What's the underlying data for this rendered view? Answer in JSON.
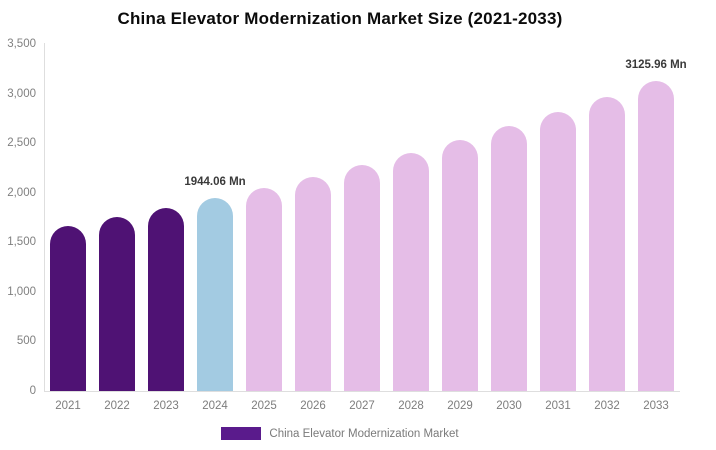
{
  "title": "China Elevator Modernization Market Size (2021-2033)",
  "legend": {
    "label": "China Elevator Modernization Market",
    "swatch_color": "#5A1B8C"
  },
  "colors": {
    "historical_bar": "#4F1274",
    "base_year_bar": "#A3CBE2",
    "forecast_bar": "#E5BDE7",
    "axis_line": "#dedede",
    "tick_text": "#808080",
    "data_label_text": "#3a3a3a"
  },
  "chart_data": {
    "type": "bar",
    "title": "China Elevator Modernization Market Size (2021-2033)",
    "unit": "Mn",
    "categories": [
      "2021",
      "2022",
      "2023",
      "2024",
      "2025",
      "2026",
      "2027",
      "2028",
      "2029",
      "2030",
      "2031",
      "2032",
      "2033"
    ],
    "values": [
      1660,
      1751,
      1843,
      1944.06,
      2049,
      2161,
      2278,
      2401,
      2531,
      2669,
      2813,
      2966,
      3125.96
    ],
    "bar_colors": [
      "#4F1274",
      "#4F1274",
      "#4F1274",
      "#A3CBE2",
      "#E5BDE7",
      "#E5BDE7",
      "#E5BDE7",
      "#E5BDE7",
      "#E5BDE7",
      "#E5BDE7",
      "#E5BDE7",
      "#E5BDE7",
      "#E5BDE7"
    ],
    "ylim": [
      0,
      3500
    ],
    "y_ticks": [
      0,
      500,
      1000,
      1500,
      2000,
      2500,
      3000,
      3500
    ],
    "y_tick_labels": [
      "0",
      "500",
      "1,000",
      "1,500",
      "2,000",
      "2,500",
      "3,000",
      "3,500"
    ],
    "xlabel": "",
    "ylabel": "",
    "grid": false,
    "legend_position": "bottom",
    "data_labels": [
      {
        "index": 3,
        "text": "1944.06 Mn"
      },
      {
        "index": 12,
        "text": "3125.96 Mn"
      }
    ]
  }
}
